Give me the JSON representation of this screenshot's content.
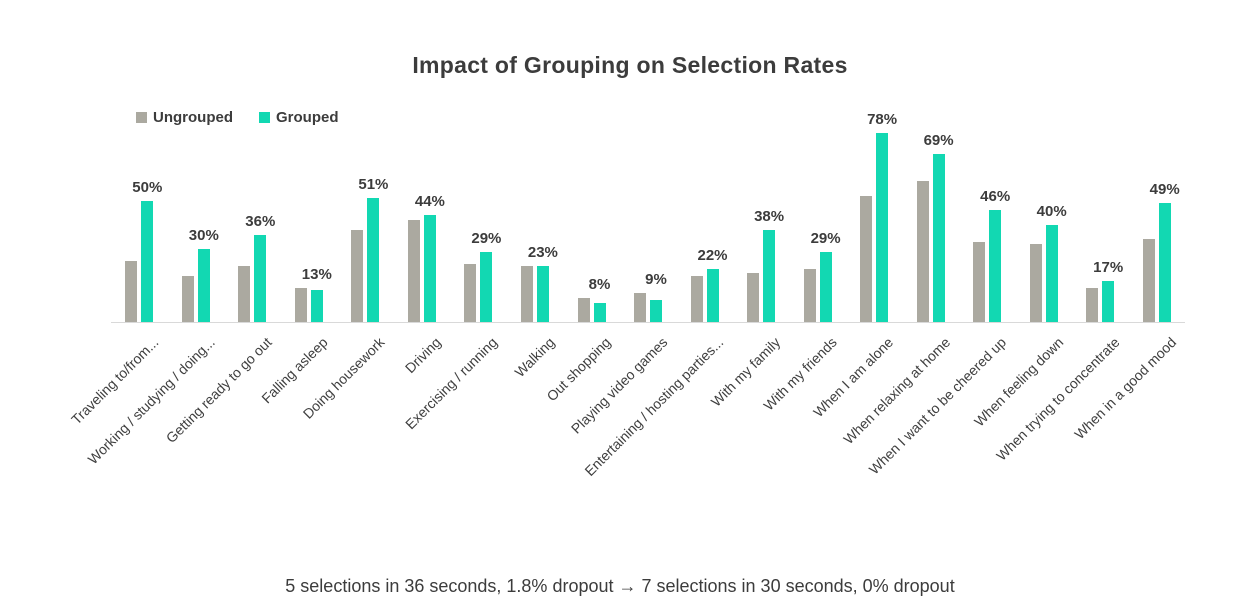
{
  "header": {
    "title": "Impact of Grouping on Selection Rates"
  },
  "legend": {
    "items": [
      {
        "label": "Ungrouped",
        "color": "#ABA9A0"
      },
      {
        "label": "Grouped",
        "color": "#12D8B2"
      }
    ]
  },
  "footer": {
    "caption": "5 selections in 36 seconds, 1.8% dropout  →  7 selections in 30 seconds, 0% dropout"
  },
  "chart_data": {
    "type": "bar",
    "title": "Impact of Grouping on Selection Rates",
    "categories": [
      "Traveling to/from...",
      "Working / studying / doing...",
      "Getting ready to go out",
      "Falling asleep",
      "Doing housework",
      "Driving",
      "Exercising / running",
      "Walking",
      "Out shopping",
      "Playing video games",
      "Entertaining / hosting parties...",
      "With my family",
      "With my friends",
      "When I am alone",
      "When relaxing at home",
      "When I want to be cheered up",
      "When feeling down",
      "When trying to concentrate",
      "When in a good mood"
    ],
    "series": [
      {
        "name": "Ungrouped",
        "color": "#ABA9A0",
        "values": [
          25,
          19,
          23,
          14,
          38,
          42,
          24,
          23,
          10,
          12,
          19,
          20,
          22,
          52,
          58,
          33,
          32,
          14,
          34
        ]
      },
      {
        "name": "Grouped",
        "color": "#12D8B2",
        "values": [
          50,
          30,
          36,
          13,
          51,
          44,
          29,
          23,
          8,
          9,
          22,
          38,
          29,
          78,
          69,
          46,
          40,
          17,
          49
        ]
      }
    ],
    "data_labels": [
      "50%",
      "30%",
      "36%",
      "13%",
      "51%",
      "44%",
      "29%",
      "23%",
      "8%",
      "9%",
      "22%",
      "38%",
      "29%",
      "78%",
      "69%",
      "46%",
      "40%",
      "17%",
      "49%"
    ],
    "data_labels_on_series": "Grouped",
    "ylim": [
      0,
      100
    ],
    "grid": false,
    "y_axis_shown": false,
    "legend_position": "top-left",
    "axis_line_color": "#D9D9D9",
    "label_color": "#3C3C3C"
  }
}
